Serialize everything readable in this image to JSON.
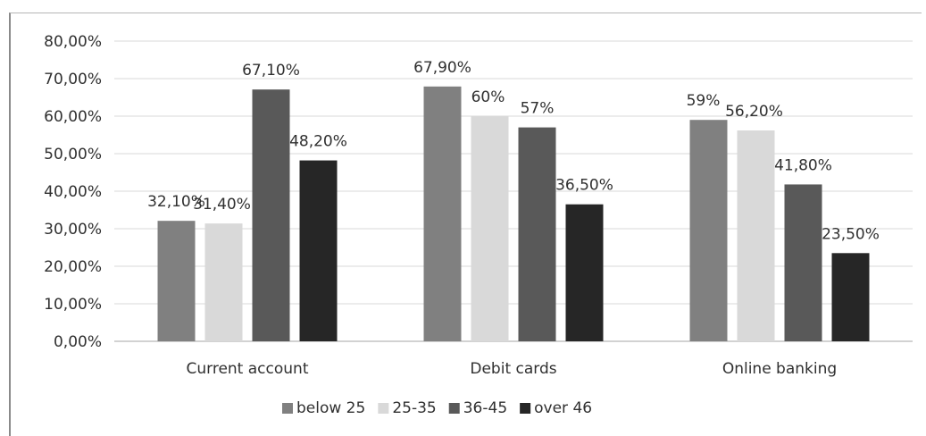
{
  "chart_data": {
    "type": "bar",
    "categories": [
      "Current account",
      "Debit cards",
      "Online banking"
    ],
    "series": [
      {
        "name": "below 25",
        "values": [
          32.1,
          67.9,
          59
        ],
        "labels": [
          "32,10%",
          "67,90%",
          "59%"
        ],
        "color": "#808080"
      },
      {
        "name": "25-35",
        "values": [
          31.4,
          60,
          56.2
        ],
        "labels": [
          "31,40%",
          "60%",
          "56,20%"
        ],
        "color": "#d9d9d9"
      },
      {
        "name": "36-45",
        "values": [
          67.1,
          57,
          41.8
        ],
        "labels": [
          "67,10%",
          "57%",
          "41,80%"
        ],
        "color": "#595959"
      },
      {
        "name": "over 46",
        "values": [
          48.2,
          36.5,
          23.5
        ],
        "labels": [
          "48,20%",
          "36,50%",
          "23,50%"
        ],
        "color": "#262626"
      }
    ],
    "y_ticks": [
      "0,00%",
      "10,00%",
      "20,00%",
      "30,00%",
      "40,00%",
      "50,00%",
      "60,00%",
      "70,00%",
      "80,00%"
    ],
    "ylim": [
      0,
      80
    ],
    "grid": true,
    "legend_position": "bottom",
    "title": "",
    "xlabel": "",
    "ylabel": ""
  }
}
